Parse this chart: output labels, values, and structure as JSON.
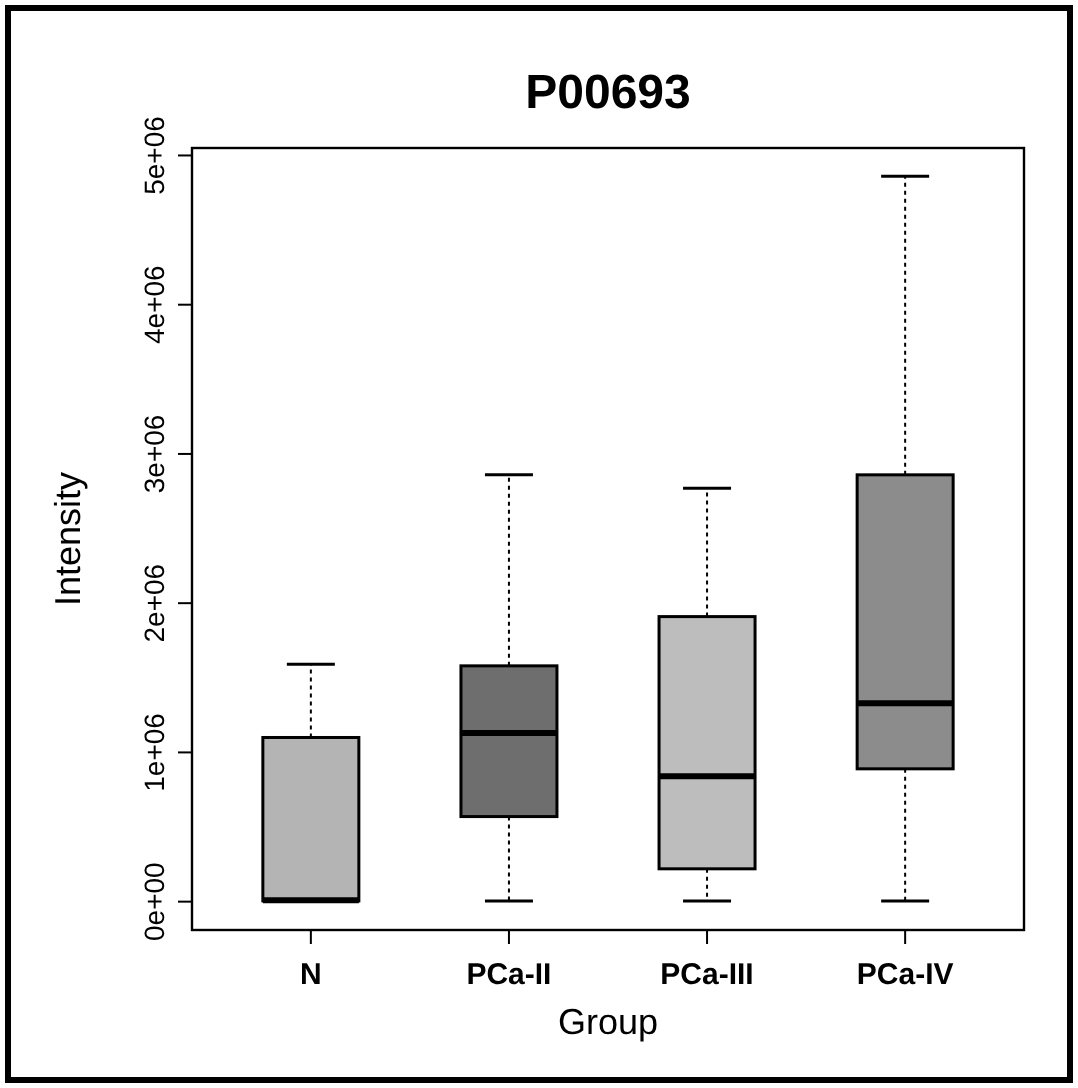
{
  "chart_data": {
    "type": "box",
    "title": "P00693",
    "xlabel": "Group",
    "ylabel": "Intensity",
    "categories": [
      "N",
      "PCa-II",
      "PCa-III",
      "PCa-IV"
    ],
    "colors": [
      "#b4b4b4",
      "#6e6e6e",
      "#bdbdbd",
      "#8c8c8c"
    ],
    "boxes": [
      {
        "low": 5000,
        "q1": 5000,
        "median": 10000,
        "q3": 1100000.0,
        "high": 1590000.0
      },
      {
        "low": 5000,
        "q1": 570000.0,
        "median": 1130000.0,
        "q3": 1580000.0,
        "high": 2860000.0
      },
      {
        "low": 5000,
        "q1": 220000.0,
        "median": 840000.0,
        "q3": 1910000.0,
        "high": 2770000.0
      },
      {
        "low": 5000,
        "q1": 890000.0,
        "median": 1330000.0,
        "q3": 2860000.0,
        "high": 4860000.0
      }
    ],
    "ylim": [
      -190000,
      5050000
    ],
    "yticks": [
      {
        "value": 0,
        "label": "0e+00"
      },
      {
        "value": 1000000,
        "label": "1e+06"
      },
      {
        "value": 2000000,
        "label": "2e+06"
      },
      {
        "value": 3000000,
        "label": "3e+06"
      },
      {
        "value": 4000000,
        "label": "4e+06"
      },
      {
        "value": 5000000,
        "label": "5e+06"
      }
    ],
    "grid": false
  }
}
